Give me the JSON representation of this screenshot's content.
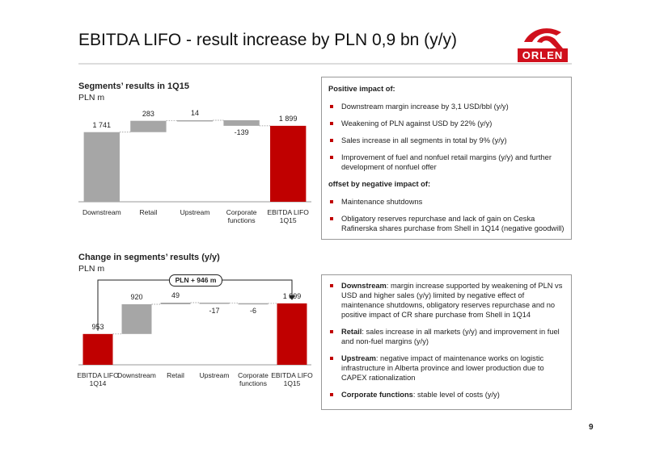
{
  "header": {
    "title": "EBITDA LIFO - result increase by PLN 0,9 bn (y/y)",
    "logo": "ORLEN"
  },
  "page_number": "9",
  "chart_data": [
    {
      "type": "waterfall",
      "title": "Segments’ results in 1Q15",
      "subtitle": "PLN m",
      "categories": [
        "Downstream",
        "Retail",
        "Upstream",
        "Corporate functions",
        "EBITDA LIFO 1Q15"
      ],
      "values": [
        1741,
        283,
        14,
        -139,
        1899
      ],
      "value_labels": [
        "1 741",
        "283",
        "14",
        "-139",
        "1 899"
      ],
      "colors": [
        "#a6a6a6",
        "#a6a6a6",
        "#a6a6a6",
        "#a6a6a6",
        "#c00000"
      ]
    },
    {
      "type": "waterfall",
      "title": "Change in segments’ results (y/y)",
      "subtitle": "PLN m",
      "annotation": "PLN + 946 m",
      "categories": [
        "EBITDA LIFO 1Q14",
        "Downstream",
        "Retail",
        "Upstream",
        "Corporate functions",
        "EBITDA LIFO 1Q15"
      ],
      "values": [
        953,
        920,
        49,
        -17,
        -6,
        1899
      ],
      "value_labels": [
        "953",
        "920",
        "49",
        "-17",
        "-6",
        "1 899"
      ],
      "colors": [
        "#c00000",
        "#a6a6a6",
        "#a6a6a6",
        "#a6a6a6",
        "#a6a6a6",
        "#c00000"
      ]
    }
  ],
  "positive_box": {
    "heading": "Positive impact of:",
    "bullets": [
      "Downstream margin increase by 3,1 USD/bbl (y/y)",
      "Weakening of PLN against USD by 22% (y/y)",
      "Sales increase in all segments in total by 9% (y/y)",
      "Improvement of fuel and nonfuel retail margins (y/y) and further development of nonfuel offer"
    ],
    "negative_heading": "offset by negative impact of:",
    "negative_bullets": [
      "Maintenance shutdowns",
      "Obligatory reserves repurchase and lack of gain on Ceska Rafinerska shares purchase from Shell in 1Q14 (negative goodwill)"
    ]
  },
  "segments_box": {
    "bullets": [
      {
        "bold": "Downstream",
        "text": ": margin increase supported by weakening of PLN vs USD and higher sales (y/y) limited by negative effect of maintenance shutdowns, obligatory reserves repurchase and no positive impact of CR share purchase from Shell in 1Q14"
      },
      {
        "bold": "Retail",
        "text": ": sales increase in all markets (y/y) and improvement in fuel and non-fuel margins (y/y)"
      },
      {
        "bold": "Upstream",
        "text": ": negative impact of maintenance works on logistic infrastructure in Alberta province and lower production due to CAPEX rationalization"
      },
      {
        "bold": "Corporate functions",
        "text": ": stable level of costs (y/y)"
      }
    ]
  }
}
